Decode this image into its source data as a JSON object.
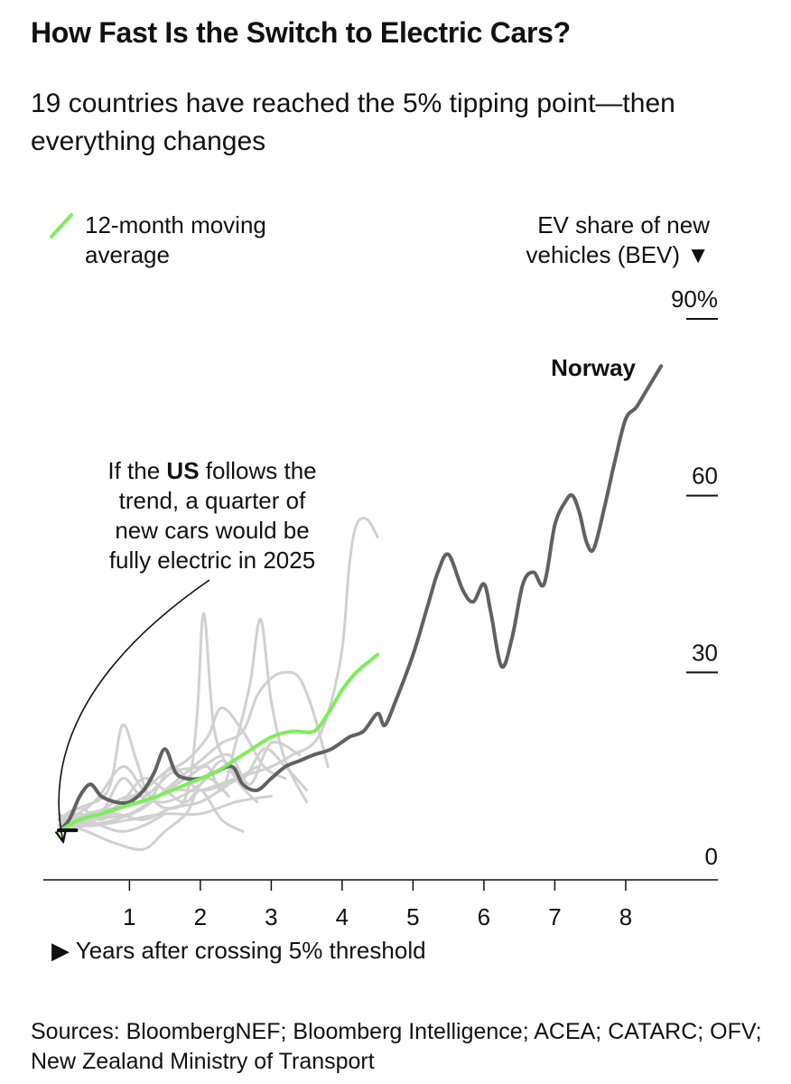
{
  "header": {
    "title": "How Fast Is the Switch to Electric Cars?",
    "subtitle": "19 countries have reached the 5% tipping point—then everything changes"
  },
  "footer": {
    "sources": "Sources: BloombergNEF; Bloomberg Intelligence; ACEA; CATARC; OFV; New Zealand Ministry of Transport"
  },
  "chart_data": {
    "type": "line",
    "title": "How Fast Is the Switch to Electric Cars?",
    "ylabel_lines": [
      "EV share of new",
      "vehicles (BEV) ▼"
    ],
    "xlabel": "▶ Years after crossing 5% threshold",
    "xlim": [
      -0.1,
      9.3
    ],
    "ylim": [
      0,
      90
    ],
    "x_ticks": [
      1,
      2,
      3,
      4,
      5,
      6,
      7,
      8
    ],
    "y_ticks": [
      {
        "value": 0,
        "label": "0"
      },
      {
        "value": 30,
        "label": "30"
      },
      {
        "value": 60,
        "label": "60"
      },
      {
        "value": 90,
        "label": "90%"
      }
    ],
    "legend": {
      "label_lines": [
        "12-month moving",
        "average"
      ],
      "color": "#7ded5c",
      "position": "top-left"
    },
    "annotations": {
      "norway_label": "Norway",
      "us_note": {
        "before": "If the ",
        "bold": "US",
        "line1_after": " follows the",
        "line2": "trend, a quarter of",
        "line3": "new cars would be",
        "line4": "fully electric in 2025"
      }
    },
    "series": [
      {
        "name": "Norway",
        "color": "#616161",
        "x": [
          0.0,
          0.15,
          0.3,
          0.45,
          0.6,
          0.8,
          1.0,
          1.2,
          1.35,
          1.5,
          1.65,
          1.8,
          2.0,
          2.2,
          2.45,
          2.6,
          2.8,
          3.0,
          3.2,
          3.4,
          3.6,
          3.85,
          4.1,
          4.3,
          4.5,
          4.6,
          4.75,
          5.0,
          5.2,
          5.35,
          5.5,
          5.7,
          5.85,
          6.0,
          6.1,
          6.25,
          6.4,
          6.55,
          6.7,
          6.85,
          7.0,
          7.15,
          7.25,
          7.35,
          7.45,
          7.55,
          7.7,
          7.85,
          8.0,
          8.15,
          8.3,
          8.5
        ],
        "y": [
          3,
          5,
          9,
          11,
          9,
          8,
          8,
          10,
          13,
          17,
          13,
          12,
          12,
          13,
          14,
          11,
          10,
          12,
          14,
          15,
          16,
          17,
          19,
          20,
          23,
          21,
          25,
          33,
          41,
          47,
          50,
          44,
          42,
          45,
          40,
          31,
          36,
          45,
          47,
          45,
          55,
          59,
          60,
          57,
          52,
          51,
          58,
          66,
          73,
          75,
          78,
          82
        ]
      },
      {
        "name": "US",
        "color": "#111111",
        "x": [
          0.0,
          0.25
        ],
        "y": [
          3.2,
          3.2
        ]
      },
      {
        "name": "12-month moving average",
        "color": "#7ded5c",
        "x": [
          0.0,
          0.3,
          0.6,
          1.0,
          1.4,
          1.8,
          2.2,
          2.6,
          3.0,
          3.3,
          3.6,
          3.8,
          4.0,
          4.2,
          4.5
        ],
        "y": [
          3,
          5,
          6,
          7.5,
          9,
          11,
          13,
          16,
          19,
          20,
          20,
          23,
          27,
          30,
          33
        ]
      },
      {
        "name": "Other countries",
        "color": "#d0d0d0",
        "group": "background",
        "lines": [
          {
            "x": [
              0.0,
              0.4,
              0.8,
              1.2,
              1.6,
              2.0,
              2.5,
              3.0,
              3.3,
              3.6,
              3.8,
              4.0,
              4.1,
              4.2,
              4.35,
              4.5
            ],
            "y": [
              4,
              6,
              7,
              8,
              10,
              10,
              12,
              14,
              16,
              18,
              23,
              34,
              48,
              55,
              56,
              53
            ]
          },
          {
            "x": [
              0.0,
              0.5,
              0.9,
              1.2,
              1.5,
              1.8,
              1.95,
              2.05,
              2.2,
              2.5,
              2.8
            ],
            "y": [
              4,
              8,
              14,
              10,
              7,
              9,
              22,
              40,
              20,
              12,
              8
            ]
          },
          {
            "x": [
              0.0,
              0.5,
              1.0,
              1.4,
              1.8,
              2.1,
              2.3,
              2.5,
              2.7,
              2.85,
              3.0,
              3.2,
              3.5
            ],
            "y": [
              3,
              5,
              6,
              9,
              12,
              14,
              10,
              18,
              28,
              39,
              25,
              15,
              8
            ]
          },
          {
            "x": [
              0.0,
              0.3,
              0.7,
              0.9,
              1.1,
              1.3,
              1.6,
              2.0,
              2.5
            ],
            "y": [
              5,
              7,
              10,
              21,
              15,
              9,
              14,
              10,
              12
            ]
          },
          {
            "x": [
              0.0,
              0.4,
              0.8,
              1.2,
              1.6,
              2.0,
              2.3,
              2.6,
              2.8,
              3.0,
              3.2,
              3.4,
              3.6,
              3.8
            ],
            "y": [
              3,
              4,
              5,
              7,
              11,
              15,
              18,
              20,
              26,
              29,
              30,
              29,
              23,
              14
            ]
          },
          {
            "x": [
              0.0,
              0.5,
              1.0,
              1.5,
              2.0,
              2.3,
              2.6,
              2.9,
              3.2,
              3.5
            ],
            "y": [
              4,
              6,
              9,
              8,
              11,
              15,
              12,
              17,
              14,
              10
            ]
          },
          {
            "x": [
              0.0,
              0.5,
              0.9,
              1.2,
              1.5,
              1.8,
              2.1,
              2.3,
              2.6,
              2.9,
              3.2
            ],
            "y": [
              4,
              5,
              8,
              10,
              13,
              15,
              19,
              24,
              20,
              14,
              12
            ]
          },
          {
            "x": [
              0.0,
              0.4,
              0.8,
              1.2,
              1.5,
              1.8,
              2.0,
              2.3,
              2.6
            ],
            "y": [
              5,
              3,
              1,
              0,
              3,
              6,
              10,
              5,
              3
            ]
          },
          {
            "x": [
              0.0,
              0.4,
              0.8,
              1.2,
              1.6,
              2.0,
              2.4,
              2.8
            ],
            "y": [
              5,
              5,
              6,
              5,
              7,
              8,
              11,
              14
            ]
          },
          {
            "x": [
              0.0,
              0.3,
              0.6,
              0.9,
              1.2,
              1.6,
              2.0,
              2.4,
              2.7,
              3.0,
              3.4
            ],
            "y": [
              6,
              4,
              6,
              12,
              9,
              13,
              14,
              16,
              11,
              18,
              16
            ]
          },
          {
            "x": [
              0.0,
              0.5,
              1.0,
              1.5,
              2.0,
              2.5,
              3.0
            ],
            "y": [
              4,
              4,
              5,
              6,
              6,
              8,
              9
            ]
          },
          {
            "x": [
              0.0,
              0.3,
              0.6,
              0.9,
              1.2,
              1.5,
              1.8,
              2.1,
              2.4
            ],
            "y": [
              5,
              7,
              5,
              8,
              12,
              10,
              8,
              12,
              9
            ]
          },
          {
            "x": [
              0.0,
              0.3,
              0.6,
              0.9,
              1.2,
              1.5
            ],
            "y": [
              5,
              6,
              4,
              3,
              4,
              6
            ]
          }
        ]
      }
    ]
  }
}
